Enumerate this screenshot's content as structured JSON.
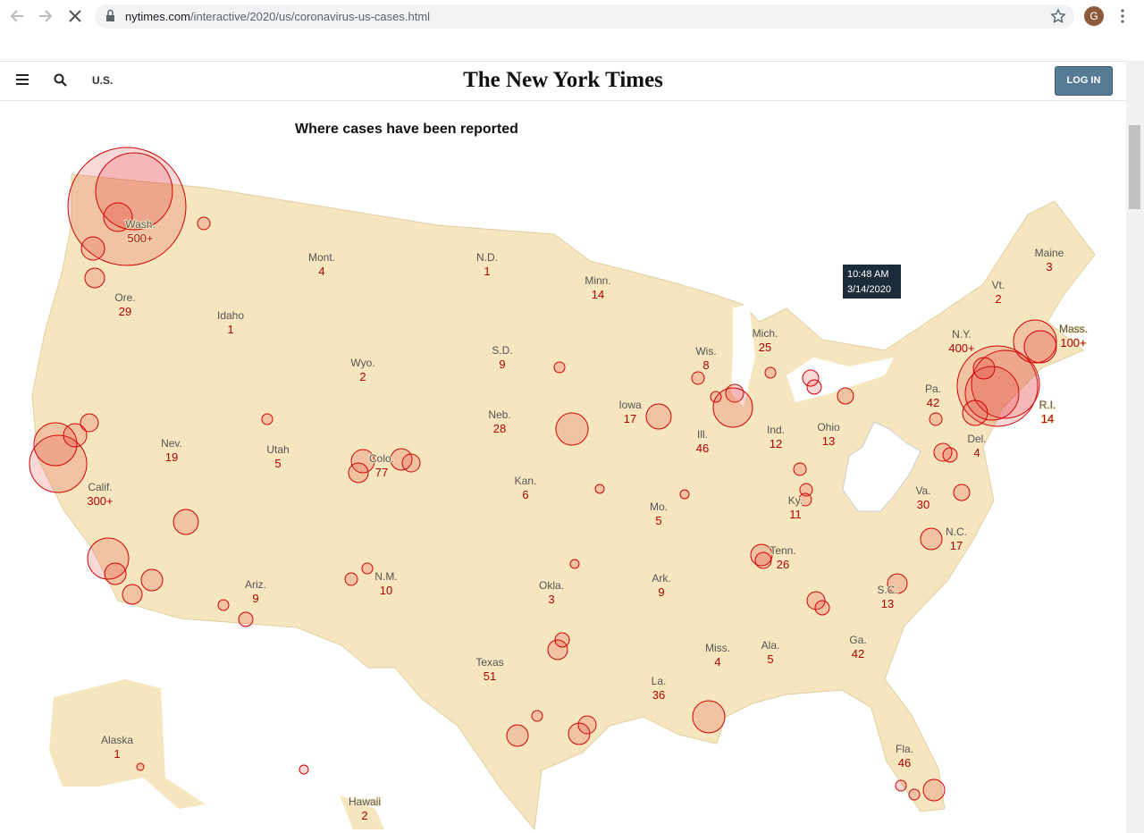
{
  "browser": {
    "url_host": "nytimes.com",
    "url_path": "/interactive/2020/us/coronavirus-us-cases.html",
    "profile": "G"
  },
  "header": {
    "section": "U.S.",
    "logo": "The New York Times",
    "login": "LOG IN"
  },
  "map": {
    "title": "Where cases have been reported",
    "tooltip": {
      "time": "10:48 AM",
      "date": "3/14/2020"
    },
    "states": [
      {
        "name": "Wash.",
        "cases": "500+"
      },
      {
        "name": "Ore.",
        "cases": 29
      },
      {
        "name": "Calif.",
        "cases": "300+"
      },
      {
        "name": "Nev.",
        "cases": 19
      },
      {
        "name": "Idaho",
        "cases": 1
      },
      {
        "name": "Mont.",
        "cases": 4
      },
      {
        "name": "Wyo.",
        "cases": 2
      },
      {
        "name": "Utah",
        "cases": 5
      },
      {
        "name": "Colo.",
        "cases": 77
      },
      {
        "name": "Ariz.",
        "cases": 9
      },
      {
        "name": "N.M.",
        "cases": 10
      },
      {
        "name": "N.D.",
        "cases": 1
      },
      {
        "name": "S.D.",
        "cases": 9
      },
      {
        "name": "Neb.",
        "cases": 28
      },
      {
        "name": "Kan.",
        "cases": 6
      },
      {
        "name": "Okla.",
        "cases": 3
      },
      {
        "name": "Texas",
        "cases": 51
      },
      {
        "name": "Minn.",
        "cases": 14
      },
      {
        "name": "Iowa",
        "cases": 17
      },
      {
        "name": "Mo.",
        "cases": 5
      },
      {
        "name": "Ark.",
        "cases": 9
      },
      {
        "name": "La.",
        "cases": 36
      },
      {
        "name": "Wis.",
        "cases": 8
      },
      {
        "name": "Ill.",
        "cases": 46
      },
      {
        "name": "Mich.",
        "cases": 25
      },
      {
        "name": "Ind.",
        "cases": 12
      },
      {
        "name": "Ohio",
        "cases": 13
      },
      {
        "name": "Ky.",
        "cases": 11
      },
      {
        "name": "Tenn.",
        "cases": 26
      },
      {
        "name": "Miss.",
        "cases": 4
      },
      {
        "name": "Ala.",
        "cases": 5
      },
      {
        "name": "Ga.",
        "cases": 42
      },
      {
        "name": "Fla.",
        "cases": 46
      },
      {
        "name": "S.C.",
        "cases": 13
      },
      {
        "name": "N.C.",
        "cases": 17
      },
      {
        "name": "Va.",
        "cases": 30
      },
      {
        "name": "Pa.",
        "cases": 42
      },
      {
        "name": "N.Y.",
        "cases": "400+"
      },
      {
        "name": "Vt.",
        "cases": 2
      },
      {
        "name": "Maine",
        "cases": 3
      },
      {
        "name": "Mass.",
        "cases": "100+"
      },
      {
        "name": "R.I.",
        "cases": 14
      },
      {
        "name": "Del.",
        "cases": 4
      },
      {
        "name": "Alaska",
        "cases": 1
      },
      {
        "name": "Hawaii",
        "cases": 2
      }
    ]
  }
}
